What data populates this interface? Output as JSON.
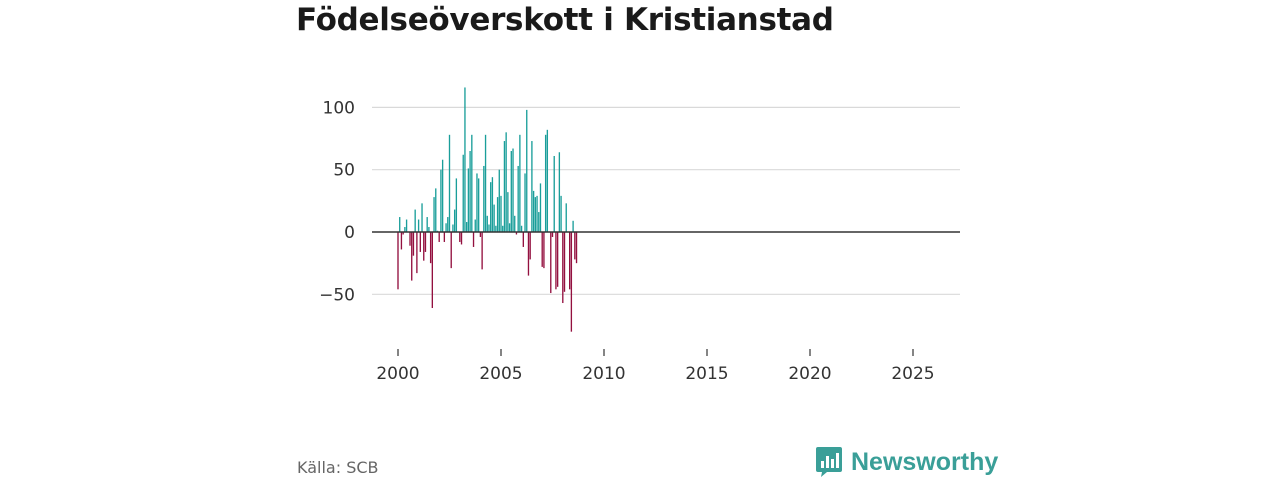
{
  "title": "Födelseöverskott i Kristianstad",
  "source": "Källa: SCB",
  "brand": {
    "name": "Newsworthy",
    "icon": "newsworthy-logo-icon"
  },
  "colors": {
    "positive": "#1a9e9a",
    "negative": "#93103f",
    "grid": "#d9d9d9",
    "zero_line": "#333333",
    "text": "#333333"
  },
  "chart_data": {
    "type": "bar",
    "title": "Födelseöverskott i Kristianstad",
    "xlabel": "",
    "ylabel": "",
    "ylim": [
      -85,
      120
    ],
    "xlim": [
      1999.5,
      2027.2
    ],
    "yticks": [
      100,
      50,
      0,
      -50
    ],
    "ytick_labels": [
      "100",
      "50",
      "0",
      "−50"
    ],
    "xticks": [
      2000,
      2005,
      2010,
      2015,
      2020,
      2025
    ],
    "xtick_labels": [
      "2000",
      "2005",
      "2010",
      "2015",
      "2020",
      "2025"
    ],
    "frequency": "monthly",
    "start": 2000.0,
    "values": [
      -46,
      12,
      -14,
      -2,
      4,
      10,
      0,
      -11,
      -39,
      -19,
      18,
      -33,
      10,
      -16,
      23,
      -23,
      -16,
      12,
      4,
      -25,
      -61,
      28,
      35,
      1,
      -8,
      50,
      58,
      -8,
      7,
      12,
      78,
      -29,
      6,
      18,
      43,
      0,
      -8,
      -10,
      62,
      116,
      8,
      51,
      65,
      78,
      -12,
      10,
      47,
      43,
      -4,
      -30,
      53,
      78,
      13,
      6,
      40,
      44,
      22,
      5,
      28,
      50,
      29,
      5,
      73,
      80,
      32,
      7,
      65,
      67,
      13,
      -2,
      53,
      78,
      5,
      -12,
      47,
      98,
      -35,
      -22,
      73,
      33,
      28,
      29,
      16,
      39,
      -28,
      -29,
      78,
      82,
      0,
      -49,
      -4,
      61,
      -46,
      -44,
      64,
      29,
      -57,
      -48,
      23,
      0,
      -46,
      -80,
      9,
      -22,
      -25
    ]
  }
}
